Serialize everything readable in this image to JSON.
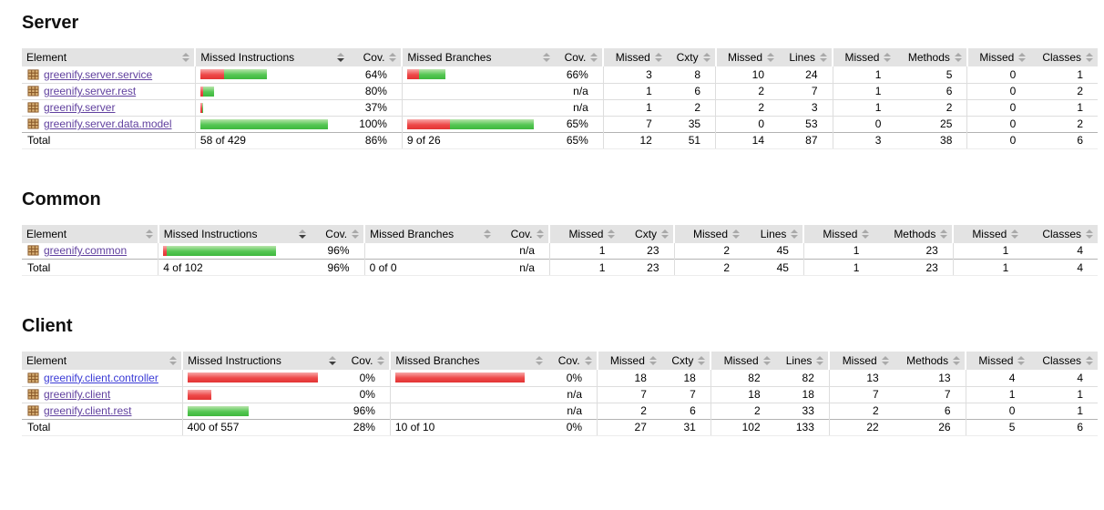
{
  "colors": {
    "header_bg": "#e3e3e3",
    "bar_red": "#e23434",
    "bar_green": "#3eb73e",
    "link_visited": "#61419f",
    "link_unvisited": "#3b3bd6",
    "row_separator": "#dddddd",
    "total_separator": "#b3b3b3"
  },
  "columns": [
    {
      "label": "Element",
      "type": "element",
      "sort": "inactive",
      "group_start": false
    },
    {
      "label": "Missed Instructions",
      "type": "bar",
      "sort": "desc",
      "group_start": true
    },
    {
      "label": "Cov.",
      "type": "cov",
      "sort": "inactive",
      "group_start": false
    },
    {
      "label": "Missed Branches",
      "type": "bar",
      "sort": "inactive",
      "group_start": true
    },
    {
      "label": "Cov.",
      "type": "cov",
      "sort": "inactive",
      "group_start": false
    },
    {
      "label": "Missed",
      "type": "num",
      "sort": "inactive",
      "group_start": true
    },
    {
      "label": "Cxty",
      "type": "num",
      "sort": "inactive",
      "group_start": false
    },
    {
      "label": "Missed",
      "type": "num",
      "sort": "inactive",
      "group_start": true
    },
    {
      "label": "Lines",
      "type": "num",
      "sort": "inactive",
      "group_start": false
    },
    {
      "label": "Missed",
      "type": "num",
      "sort": "inactive",
      "group_start": true
    },
    {
      "label": "Methods",
      "type": "num",
      "sort": "inactive",
      "group_start": false
    },
    {
      "label": "Missed",
      "type": "num",
      "sort": "inactive",
      "group_start": true
    },
    {
      "label": "Classes",
      "type": "num",
      "sort": "inactive",
      "group_start": false
    }
  ],
  "sections": [
    {
      "title": "Server",
      "rows": [
        {
          "package": "greenify.server.service",
          "link_visited": true,
          "instr_bar": {
            "red": 26,
            "green": 47
          },
          "instr_cov": "64%",
          "branch_bar": {
            "red": 13,
            "green": 29
          },
          "branch_cov": "66%",
          "missed_cxty": "3",
          "cxty": "8",
          "missed_lines": "10",
          "lines": "24",
          "missed_methods": "1",
          "methods": "5",
          "missed_classes": "0",
          "classes": "1"
        },
        {
          "package": "greenify.server.rest",
          "link_visited": true,
          "instr_bar": {
            "red": 3,
            "green": 12
          },
          "instr_cov": "80%",
          "branch_bar": null,
          "branch_cov": "n/a",
          "missed_cxty": "1",
          "cxty": "6",
          "missed_lines": "2",
          "lines": "7",
          "missed_methods": "1",
          "methods": "6",
          "missed_classes": "0",
          "classes": "2"
        },
        {
          "package": "greenify.server",
          "link_visited": true,
          "instr_bar": {
            "red": 2,
            "green": 1
          },
          "instr_cov": "37%",
          "branch_bar": null,
          "branch_cov": "n/a",
          "missed_cxty": "1",
          "cxty": "2",
          "missed_lines": "2",
          "lines": "3",
          "missed_methods": "1",
          "methods": "2",
          "missed_classes": "0",
          "classes": "1"
        },
        {
          "package": "greenify.server.data.model",
          "link_visited": true,
          "instr_bar": {
            "red": 0,
            "green": 140
          },
          "instr_cov": "100%",
          "branch_bar": {
            "red": 47,
            "green": 92
          },
          "branch_cov": "65%",
          "missed_cxty": "7",
          "cxty": "35",
          "missed_lines": "0",
          "lines": "53",
          "missed_methods": "0",
          "methods": "25",
          "missed_classes": "0",
          "classes": "2"
        }
      ],
      "total": {
        "label": "Total",
        "instructions": "58 of 429",
        "instr_cov": "86%",
        "branches": "9 of 26",
        "branch_cov": "65%",
        "missed_cxty": "12",
        "cxty": "51",
        "missed_lines": "14",
        "lines": "87",
        "missed_methods": "3",
        "methods": "38",
        "missed_classes": "0",
        "classes": "6"
      }
    },
    {
      "title": "Common",
      "rows": [
        {
          "package": "greenify.common",
          "link_visited": true,
          "instr_bar": {
            "red": 4,
            "green": 120
          },
          "instr_cov": "96%",
          "branch_bar": null,
          "branch_cov": "n/a",
          "missed_cxty": "1",
          "cxty": "23",
          "missed_lines": "2",
          "lines": "45",
          "missed_methods": "1",
          "methods": "23",
          "missed_classes": "1",
          "classes": "4"
        }
      ],
      "total": {
        "label": "Total",
        "instructions": "4 of 102",
        "instr_cov": "96%",
        "branches": "0 of 0",
        "branch_cov": "n/a",
        "missed_cxty": "1",
        "cxty": "23",
        "missed_lines": "2",
        "lines": "45",
        "missed_methods": "1",
        "methods": "23",
        "missed_classes": "1",
        "classes": "4"
      }
    },
    {
      "title": "Client",
      "rows": [
        {
          "package": "greenify.client.controller",
          "link_visited": false,
          "instr_bar": {
            "red": 143,
            "green": 0
          },
          "instr_cov": "0%",
          "branch_bar": {
            "red": 142,
            "green": 0
          },
          "branch_cov": "0%",
          "missed_cxty": "18",
          "cxty": "18",
          "missed_lines": "82",
          "lines": "82",
          "missed_methods": "13",
          "methods": "13",
          "missed_classes": "4",
          "classes": "4"
        },
        {
          "package": "greenify.client",
          "link_visited": true,
          "instr_bar": {
            "red": 26,
            "green": 0
          },
          "instr_cov": "0%",
          "branch_bar": null,
          "branch_cov": "n/a",
          "missed_cxty": "7",
          "cxty": "7",
          "missed_lines": "18",
          "lines": "18",
          "missed_methods": "7",
          "methods": "7",
          "missed_classes": "1",
          "classes": "1"
        },
        {
          "package": "greenify.client.rest",
          "link_visited": true,
          "instr_bar": {
            "red": 0,
            "green": 67
          },
          "instr_cov": "96%",
          "branch_bar": null,
          "branch_cov": "n/a",
          "missed_cxty": "2",
          "cxty": "6",
          "missed_lines": "2",
          "lines": "33",
          "missed_methods": "2",
          "methods": "6",
          "missed_classes": "0",
          "classes": "1"
        }
      ],
      "total": {
        "label": "Total",
        "instructions": "400 of 557",
        "instr_cov": "28%",
        "branches": "10 of 10",
        "branch_cov": "0%",
        "missed_cxty": "27",
        "cxty": "31",
        "missed_lines": "102",
        "lines": "133",
        "missed_methods": "22",
        "methods": "26",
        "missed_classes": "5",
        "classes": "6"
      }
    }
  ]
}
